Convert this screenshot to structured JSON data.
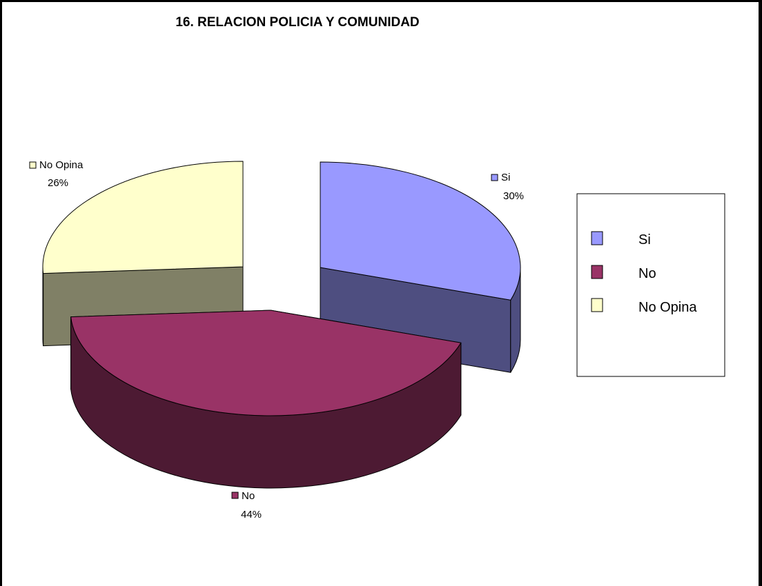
{
  "chart_data": {
    "type": "pie",
    "title": "16. RELACION POLICIA Y COMUNIDAD",
    "categories": [
      "Si",
      "No",
      "No Opina"
    ],
    "values": [
      30,
      44,
      26
    ],
    "percent_labels": [
      "30%",
      "44%",
      "26%"
    ],
    "colors": {
      "Si": {
        "top": "#9999ff",
        "side": "#4e4e80"
      },
      "No": {
        "top": "#993366",
        "side": "#4d1a33"
      },
      "No Opina": {
        "top": "#ffffcc",
        "side": "#808066"
      }
    },
    "exploded": true,
    "three_d": true,
    "legend_position": "right"
  }
}
